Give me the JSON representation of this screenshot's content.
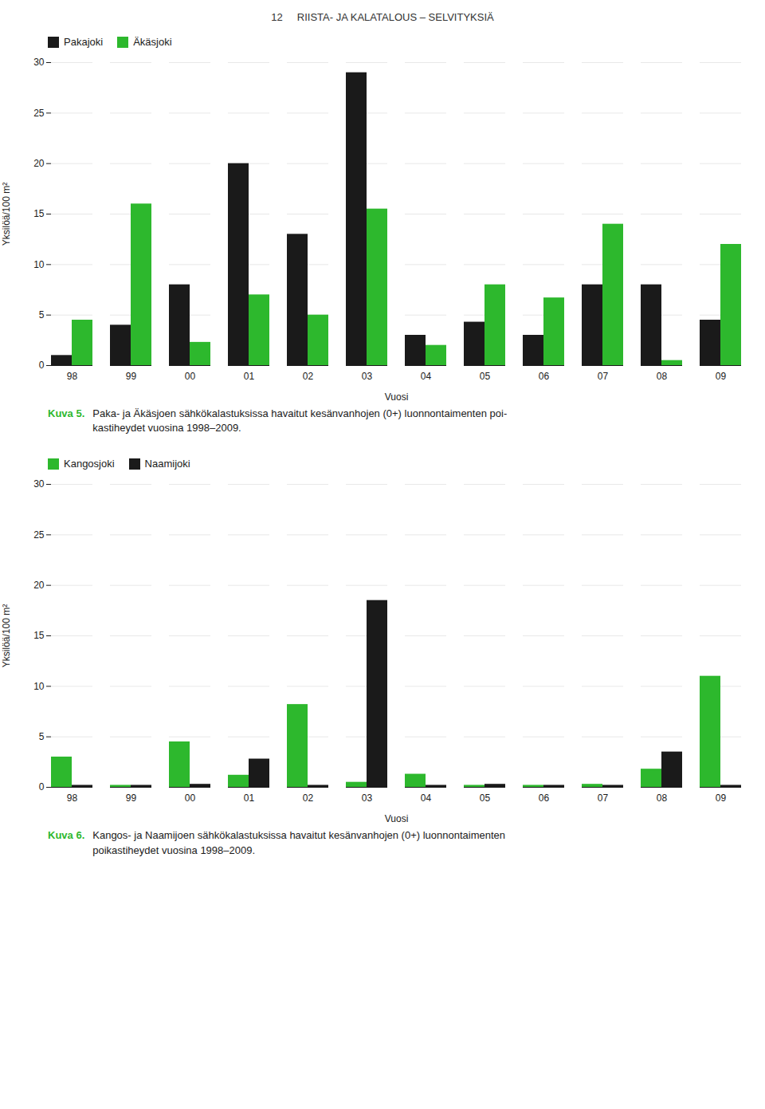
{
  "title": "12     RIISTA- JA KALATALOUS – SELVITYKSIÄ",
  "chart_data": [
    {
      "type": "bar",
      "title": "Kuva 5.",
      "subtitle": "Paka- ja Äkäsjoen sähkökalastuksissa havaitut kesänvanhojen (0+) luonnontaimenten poi-\nkastiheydet vuosina 1998–2009.",
      "categories": [
        "98",
        "99",
        "00",
        "01",
        "02",
        "03",
        "04",
        "05",
        "06",
        "07",
        "08",
        "09"
      ],
      "series": [
        {
          "name": "Pakajoki",
          "color": "#1a1a1a",
          "values": [
            1.0,
            4.0,
            8.0,
            20.0,
            13.0,
            29.0,
            3.0,
            4.3,
            3.0,
            8.0,
            8.0,
            4.5
          ]
        },
        {
          "name": "Äkäsjoki",
          "color": "#2db82d",
          "values": [
            4.5,
            16.0,
            2.3,
            7.0,
            5.0,
            15.5,
            2.0,
            8.0,
            6.7,
            14.0,
            0.5,
            12.0
          ]
        }
      ],
      "xlabel": "Vuosi",
      "ylabel": "Yksilöä/100 m²",
      "ylim": [
        0,
        30
      ],
      "yticks": [
        0,
        5,
        10,
        15,
        20,
        25,
        30
      ],
      "grid": true,
      "legend": "upper left"
    },
    {
      "type": "bar",
      "title": "Kuva 6.",
      "subtitle": "Kangos- ja Naamijoen sähkökalastuksissa havaitut kesänvanhojen (0+) luonnontaimenten\npoikastiheydet vuosina 1998–2009.",
      "categories": [
        "98",
        "99",
        "00",
        "01",
        "02",
        "03",
        "04",
        "05",
        "06",
        "07",
        "08",
        "09"
      ],
      "series": [
        {
          "name": "Kangosjoki",
          "color": "#2db82d",
          "values": [
            3.0,
            0.2,
            4.5,
            1.2,
            8.2,
            0.5,
            1.3,
            0.2,
            0.2,
            0.3,
            1.8,
            11.0
          ]
        },
        {
          "name": "Naamijoki",
          "color": "#1a1a1a",
          "values": [
            0.2,
            0.2,
            0.3,
            2.8,
            0.2,
            18.5,
            0.2,
            0.3,
            0.2,
            0.2,
            3.5,
            0.2
          ]
        }
      ],
      "xlabel": "Vuosi",
      "ylabel": "Yksilöä/100 m²",
      "ylim": [
        0,
        30
      ],
      "yticks": [
        0,
        5,
        10,
        15,
        20,
        25,
        30
      ],
      "grid": true,
      "legend": "upper left"
    }
  ]
}
